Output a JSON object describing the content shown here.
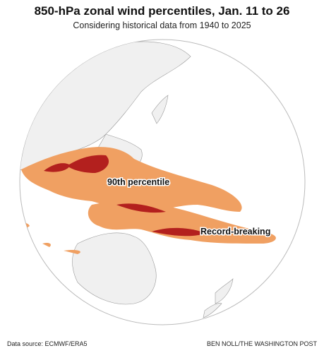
{
  "header": {
    "title": "850-hPa zonal wind percentiles, Jan. 11 to 26",
    "subtitle": "Considering historical data from 1940 to 2025"
  },
  "map": {
    "labels": [
      "90th percentile",
      "Record-breaking"
    ]
  },
  "footer": {
    "source": "Data source: ECMWF/ERA5",
    "credit": "BEN NOLL/THE WASHINGTON POST"
  }
}
